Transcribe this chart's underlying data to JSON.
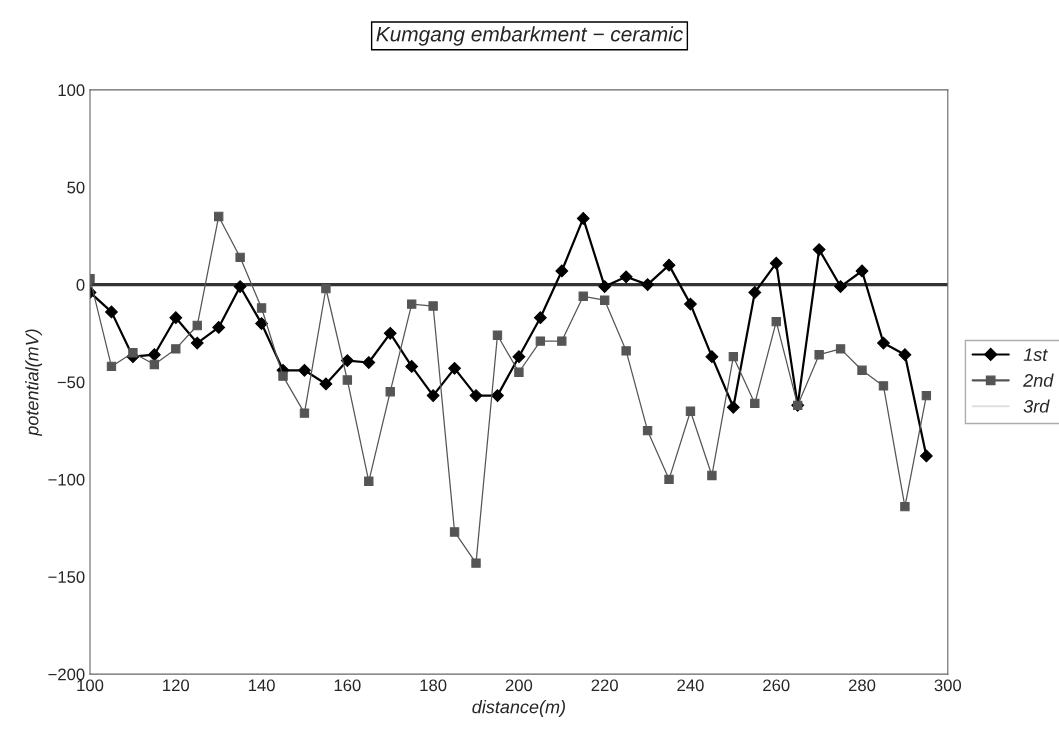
{
  "chart_data": {
    "type": "line",
    "title": "Kumgang embarkment − ceramic",
    "xlabel": "distance(m)",
    "ylabel": "potential(mV)",
    "x": [
      100,
      105,
      110,
      115,
      120,
      125,
      130,
      135,
      140,
      145,
      150,
      155,
      160,
      165,
      170,
      175,
      180,
      185,
      190,
      195,
      200,
      205,
      210,
      215,
      220,
      225,
      230,
      235,
      240,
      245,
      250,
      255,
      260,
      265,
      270,
      275,
      280,
      285,
      290,
      295
    ],
    "series": [
      {
        "name": "1st",
        "color": "#000000",
        "marker": "diamond",
        "values": [
          -4,
          -14,
          -37,
          -36,
          -17,
          -30,
          -22,
          -1,
          -20,
          -44,
          -44,
          -51,
          -39,
          -40,
          -25,
          -42,
          -57,
          -43,
          -57,
          -57,
          -37,
          -17,
          7,
          34,
          -1,
          4,
          0,
          10,
          -10,
          -37,
          -63,
          -4,
          11,
          -62,
          18,
          -1,
          7,
          -30,
          -36,
          -88
        ]
      },
      {
        "name": "2nd",
        "color": "#555555",
        "marker": "square",
        "values": [
          3,
          -42,
          -35,
          -41,
          -33,
          -21,
          35,
          14,
          -12,
          -47,
          -66,
          -2,
          -49,
          -101,
          -55,
          -10,
          -11,
          -127,
          -143,
          -26,
          -45,
          -29,
          -29,
          -6,
          -8,
          -34,
          -75,
          -100,
          -65,
          -98,
          -37,
          -61,
          -19,
          -62,
          -36,
          -33,
          -44,
          -52,
          -114,
          -57
        ]
      },
      {
        "name": "3rd",
        "color": "#e0e0e0",
        "marker": "none",
        "values": [
          null,
          null,
          null,
          null,
          null,
          null,
          null,
          null,
          null,
          null,
          null,
          null,
          null,
          null,
          null,
          null,
          null,
          null,
          null,
          null,
          null,
          null,
          null,
          null,
          null,
          null,
          null,
          null,
          null,
          null,
          null,
          null,
          null,
          null,
          null,
          null,
          null,
          null,
          null,
          null
        ]
      }
    ],
    "xlim": [
      100,
      300
    ],
    "xticks": [
      100,
      120,
      140,
      160,
      180,
      200,
      220,
      240,
      260,
      280,
      300
    ],
    "ylim": [
      -200,
      100
    ],
    "yticks": [
      -200,
      -150,
      -100,
      -50,
      0,
      50,
      100
    ],
    "ref_lines": [
      {
        "axis": "y",
        "value": 0,
        "color": "#333333"
      }
    ],
    "legend": "right",
    "grid": false
  }
}
